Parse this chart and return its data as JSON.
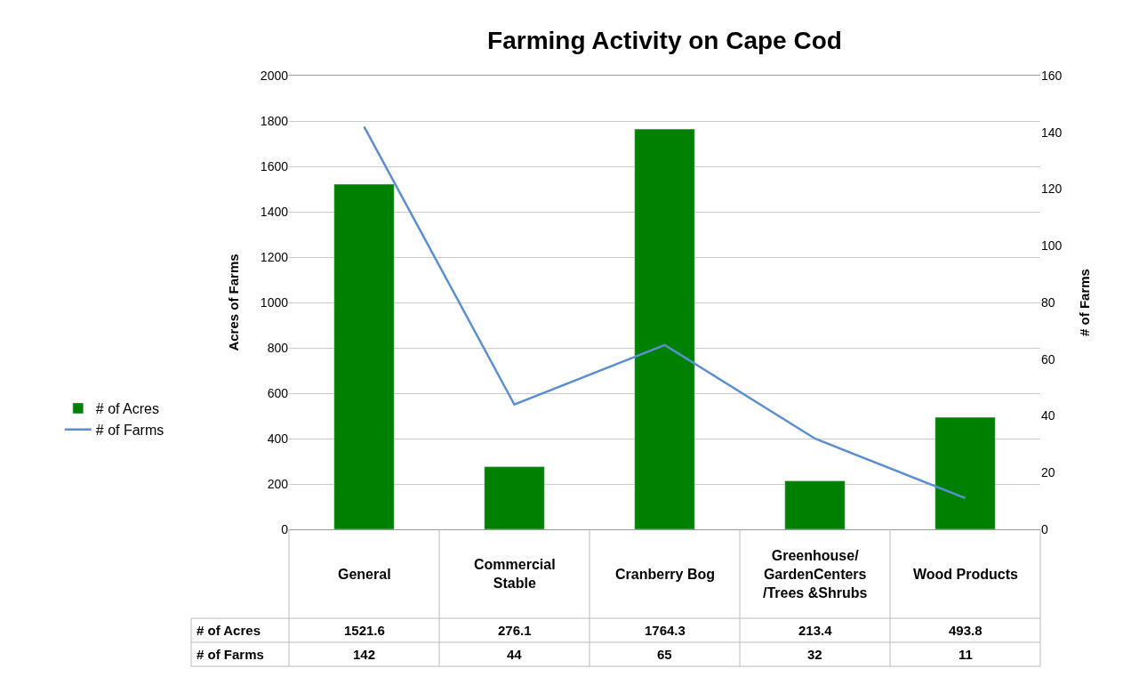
{
  "chart_data": {
    "type": "bar",
    "title": "Farming Activity on Cape Cod",
    "ylabel": "Acres of Farms",
    "y2label": "# of Farms",
    "categories": [
      "General",
      "Commercial Stable",
      "Cranberry Bog",
      "Greenhouse/ GardenCenters /Trees &Shrubs",
      "Wood Products"
    ],
    "series": [
      {
        "name": "# of Acres",
        "color": "#008000",
        "values": [
          1521.6,
          276.1,
          1764.3,
          213.4,
          493.8
        ]
      },
      {
        "name": "# of Farms",
        "color": "#5b8fd0",
        "type": "line",
        "axis": "y2",
        "marker": "none",
        "values": [
          142,
          44,
          65,
          32,
          11
        ]
      }
    ],
    "ylim": [
      0,
      2000
    ],
    "yticks": [
      0,
      200,
      400,
      600,
      800,
      1000,
      1200,
      1400,
      1600,
      1800,
      2000
    ],
    "y2lim": [
      0,
      160
    ],
    "y2ticks": [
      0,
      20,
      40,
      60,
      80,
      100,
      120,
      140,
      160
    ],
    "grid": "y",
    "legend": "left",
    "data_labels": true
  }
}
